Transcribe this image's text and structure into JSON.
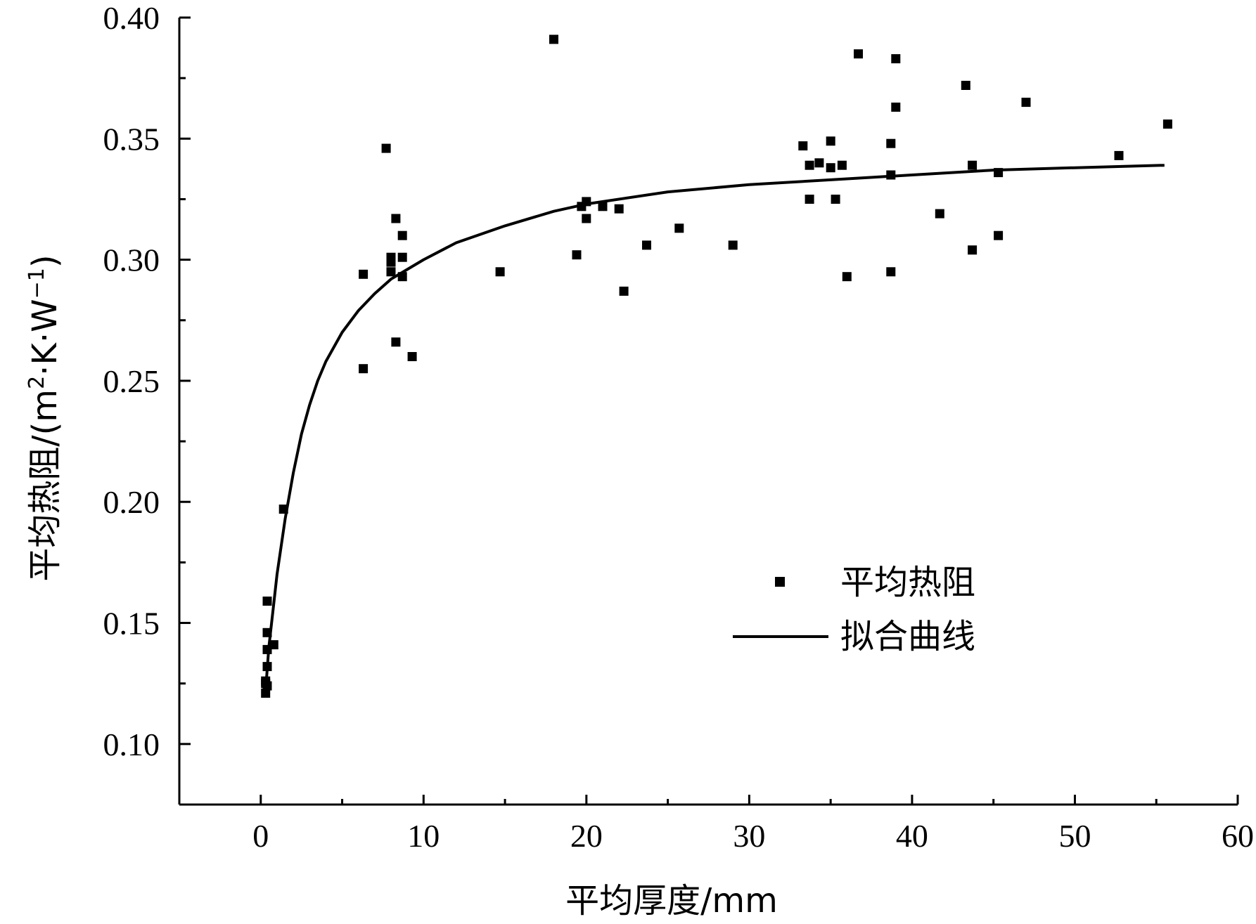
{
  "chart_data": {
    "type": "scatter",
    "title": "",
    "xlabel": "平均厚度/mm",
    "ylabel_main": "平均热阻/(m",
    "ylabel_sup1": "2",
    "ylabel_mid": "·K·W",
    "ylabel_sup2": "−1",
    "ylabel_end": ")",
    "xlim": [
      -5,
      60
    ],
    "ylim": [
      0.075,
      0.4
    ],
    "xticks": [
      0,
      10,
      20,
      30,
      40,
      50,
      60
    ],
    "yticks": [
      0.1,
      0.15,
      0.2,
      0.25,
      0.3,
      0.35,
      0.4
    ],
    "xtick_labels": [
      "0",
      "10",
      "20",
      "30",
      "40",
      "50",
      "60"
    ],
    "ytick_labels": [
      "0.10",
      "0.15",
      "0.20",
      "0.25",
      "0.30",
      "0.35",
      "0.40"
    ],
    "grid": false,
    "legend_position": "lower-right",
    "series": [
      {
        "name": "平均热阻",
        "kind": "scatter",
        "x": [
          0.3,
          0.4,
          0.3,
          0.4,
          0.4,
          0.8,
          0.4,
          0.4,
          0.3,
          1.4,
          6.3,
          6.3,
          7.7,
          8.0,
          8.0,
          8.0,
          8.3,
          8.3,
          8.7,
          8.7,
          8.7,
          9.3,
          14.7,
          18.0,
          19.4,
          19.7,
          20.0,
          20.0,
          21.0,
          22.0,
          22.3,
          23.7,
          25.7,
          29.0,
          33.3,
          33.7,
          33.7,
          34.3,
          35.0,
          35.0,
          35.3,
          35.7,
          36.0,
          36.7,
          38.7,
          38.7,
          38.7,
          39.0,
          39.0,
          41.7,
          43.3,
          43.7,
          43.7,
          45.3,
          45.3,
          47.0,
          52.7,
          55.7
        ],
        "y": [
          0.121,
          0.124,
          0.126,
          0.132,
          0.139,
          0.141,
          0.146,
          0.159,
          0.125,
          0.197,
          0.255,
          0.294,
          0.346,
          0.295,
          0.299,
          0.301,
          0.266,
          0.317,
          0.293,
          0.301,
          0.31,
          0.26,
          0.295,
          0.391,
          0.302,
          0.322,
          0.317,
          0.324,
          0.322,
          0.321,
          0.287,
          0.306,
          0.313,
          0.306,
          0.347,
          0.339,
          0.325,
          0.34,
          0.338,
          0.349,
          0.325,
          0.339,
          0.293,
          0.385,
          0.295,
          0.348,
          0.335,
          0.383,
          0.363,
          0.319,
          0.372,
          0.339,
          0.304,
          0.336,
          0.31,
          0.365,
          0.343,
          0.356
        ]
      },
      {
        "name": "拟合曲线",
        "kind": "line",
        "x": [
          0.3,
          0.5,
          0.8,
          1.0,
          1.5,
          2.0,
          2.5,
          3.0,
          3.5,
          4.0,
          5.0,
          6.0,
          7.0,
          8.0,
          9.0,
          10.0,
          12.0,
          15.0,
          18.0,
          20.0,
          25.0,
          30.0,
          35.0,
          40.0,
          45.0,
          50.0,
          55.5
        ],
        "y": [
          0.122,
          0.14,
          0.158,
          0.17,
          0.193,
          0.212,
          0.228,
          0.24,
          0.25,
          0.258,
          0.27,
          0.279,
          0.286,
          0.292,
          0.296,
          0.3,
          0.307,
          0.314,
          0.32,
          0.323,
          0.328,
          0.331,
          0.333,
          0.335,
          0.337,
          0.338,
          0.339
        ]
      }
    ]
  }
}
